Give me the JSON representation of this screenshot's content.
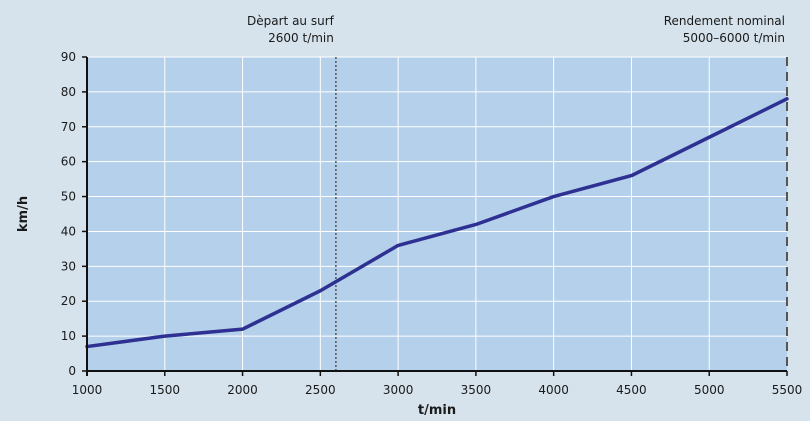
{
  "chart_data": {
    "type": "line",
    "title": "",
    "xlabel": "t/min",
    "ylabel": "km/h",
    "xlim": [
      1000,
      5500
    ],
    "ylim": [
      0,
      90
    ],
    "x_ticks": [
      1000,
      1500,
      2000,
      2500,
      3000,
      3500,
      4000,
      4500,
      5000,
      5500
    ],
    "y_ticks": [
      0,
      10,
      20,
      30,
      40,
      50,
      60,
      70,
      80,
      90
    ],
    "grid": true,
    "series": [
      {
        "x": [
          1000,
          1500,
          2000,
          2500,
          3000,
          3500,
          4000,
          4500,
          5000,
          5500
        ],
        "values": [
          7,
          10,
          12,
          23,
          36,
          42,
          50,
          56,
          67,
          78
        ]
      }
    ],
    "annotations": [
      {
        "x": 2600,
        "style": "dotted",
        "line1": "Dèpart au surf",
        "line2": "2600 t/min"
      },
      {
        "x": 5500,
        "style": "dashed",
        "line1": "Rendement nominal",
        "line2": "5000–6000 t/min"
      }
    ],
    "colors": {
      "background": "#d6e3ec",
      "plot_area": "#b4d0ea",
      "gridline": "#ffffff",
      "line": "#2e3192",
      "annotation_line": "#555555"
    }
  }
}
